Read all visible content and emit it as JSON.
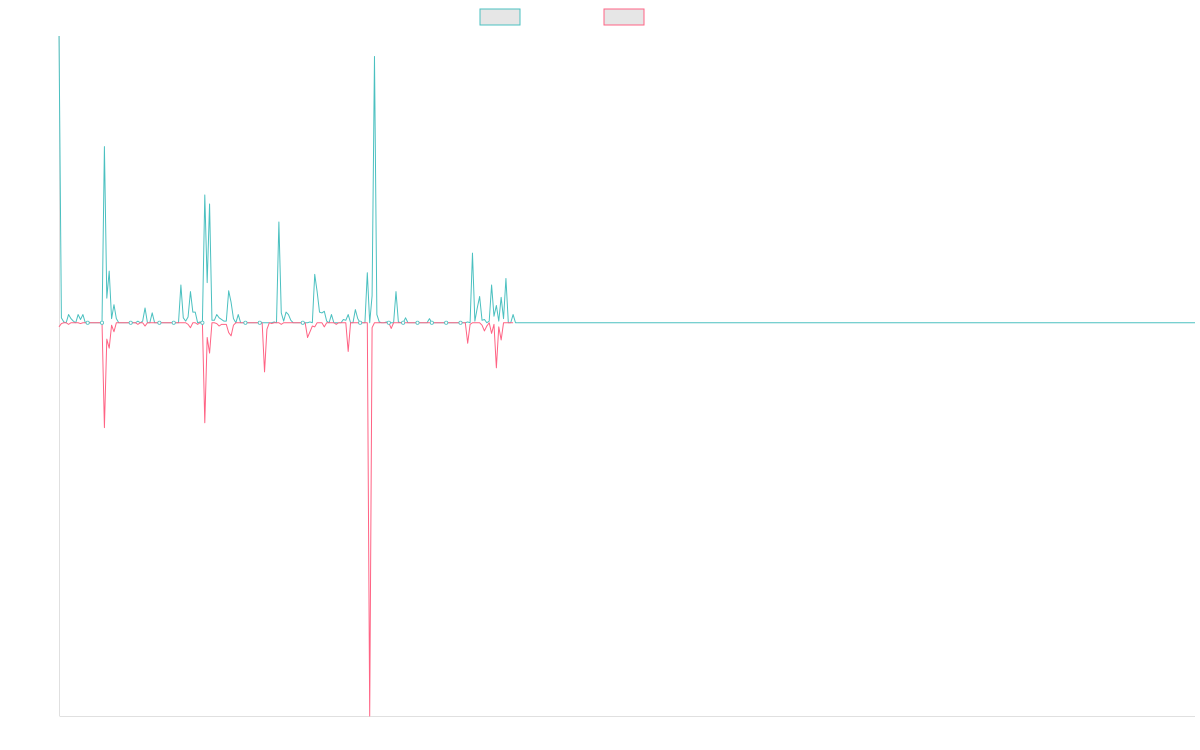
{
  "chart_data": {
    "type": "line",
    "title": "",
    "xlabel": "",
    "ylabel": "",
    "ylim": [
      -4.8,
      3.5
    ],
    "grid": false,
    "legend_position": "top-center",
    "series": [
      {
        "color": "#4bc0c0",
        "fill": "#e6e6e6",
        "values": [
          3.5,
          0.06,
          0.01,
          0,
          0.1,
          0.05,
          0.02,
          0,
          0.1,
          0.04,
          0.1,
          0,
          0,
          0,
          0,
          0,
          0,
          0,
          0,
          2.15,
          0.3,
          0.63,
          0.05,
          0.22,
          0.05,
          0,
          0,
          0,
          0,
          0,
          0,
          0,
          0,
          0.02,
          0,
          0.02,
          0.18,
          0,
          0,
          0.12,
          0,
          0,
          0,
          0,
          0,
          0,
          0,
          0,
          0,
          0,
          0,
          0.46,
          0.06,
          0.02,
          0.07,
          0.38,
          0.13,
          0.13,
          0,
          0.01,
          0,
          1.56,
          0.49,
          1.45,
          0.03,
          0.03,
          0.1,
          0.06,
          0.04,
          0.02,
          0.02,
          0.39,
          0.25,
          0.05,
          0,
          0.1,
          0,
          0,
          0,
          0,
          0,
          0,
          0,
          0,
          0,
          0,
          0,
          0,
          0,
          0,
          0.01,
          0,
          1.23,
          0.12,
          0.02,
          0.13,
          0.1,
          0.03,
          0,
          0,
          0,
          0,
          0,
          0,
          0,
          0.01,
          0,
          0.59,
          0.38,
          0.13,
          0.12,
          0.14,
          0.02,
          0,
          0.1,
          0,
          0,
          0,
          0,
          0.04,
          0.03,
          0.1,
          0,
          0,
          0.16,
          0.05,
          0,
          0,
          0,
          0.61,
          0,
          0.33,
          3.25,
          0.1,
          0.01,
          0,
          0,
          0.01,
          0,
          0,
          0,
          0.38,
          0.01,
          0,
          0,
          0.06,
          0,
          0,
          0,
          0,
          0,
          0,
          0,
          0,
          0,
          0.05,
          0,
          0,
          0,
          0,
          0,
          0,
          0,
          0,
          0,
          0,
          0,
          0,
          0,
          0,
          0,
          0.01,
          0,
          0.85,
          0.02,
          0.18,
          0.32,
          0.03,
          0.04,
          0,
          0.02,
          0.46,
          0.08,
          0.21,
          0.02,
          0.31,
          0.05,
          0.54,
          0,
          0,
          0.1,
          0,
          0
        ]
      },
      {
        "color": "#ff6384",
        "fill": "#e6e6e6",
        "values": [
          -0.05,
          -0.01,
          0,
          0,
          -0.02,
          0,
          0,
          0,
          0,
          -0.01,
          0,
          0,
          0,
          0,
          0,
          0,
          0,
          0,
          0,
          -1.28,
          -0.2,
          -0.31,
          -0.03,
          -0.11,
          0,
          0,
          0,
          0,
          0,
          0,
          0,
          0,
          0,
          -0.02,
          0,
          0,
          -0.04,
          0,
          0,
          0,
          0,
          0,
          0,
          0,
          0,
          0,
          0,
          0,
          0,
          0,
          0,
          0,
          0,
          0,
          -0.02,
          -0.06,
          0,
          0,
          -0.02,
          0,
          0,
          -1.22,
          -0.18,
          -0.37,
          0,
          0,
          -0.01,
          -0.04,
          -0.02,
          -0.02,
          -0.02,
          -0.12,
          -0.16,
          -0.03,
          0,
          0,
          0,
          0,
          0,
          0,
          0,
          0,
          0,
          0,
          0,
          0,
          -0.6,
          -0.08,
          0,
          -0.01,
          0,
          0,
          0,
          -0.02,
          0,
          0,
          0,
          0,
          0,
          0,
          0,
          0,
          0,
          0,
          -0.18,
          -0.11,
          -0.04,
          -0.05,
          0,
          0,
          0,
          -0.05,
          0,
          0,
          0,
          0,
          -0.02,
          0,
          0,
          0,
          0,
          -0.35,
          0,
          0,
          0,
          0,
          0,
          0,
          0,
          0,
          -4.8,
          -0.06,
          0,
          0,
          0,
          0,
          0,
          0,
          0,
          -0.07,
          0,
          0,
          0,
          0,
          0,
          0,
          0,
          0,
          0,
          0,
          0,
          0,
          0,
          0,
          0,
          0,
          0,
          0,
          0,
          0,
          0,
          0,
          0,
          0,
          0,
          0,
          0,
          0,
          0,
          0,
          0,
          -0.25,
          -0.02,
          0,
          0,
          0,
          0,
          -0.03,
          -0.1,
          -0.04,
          0,
          -0.13,
          -0.02,
          -0.55,
          -0.05,
          -0.21,
          0,
          0,
          0,
          0,
          0
        ]
      }
    ]
  }
}
